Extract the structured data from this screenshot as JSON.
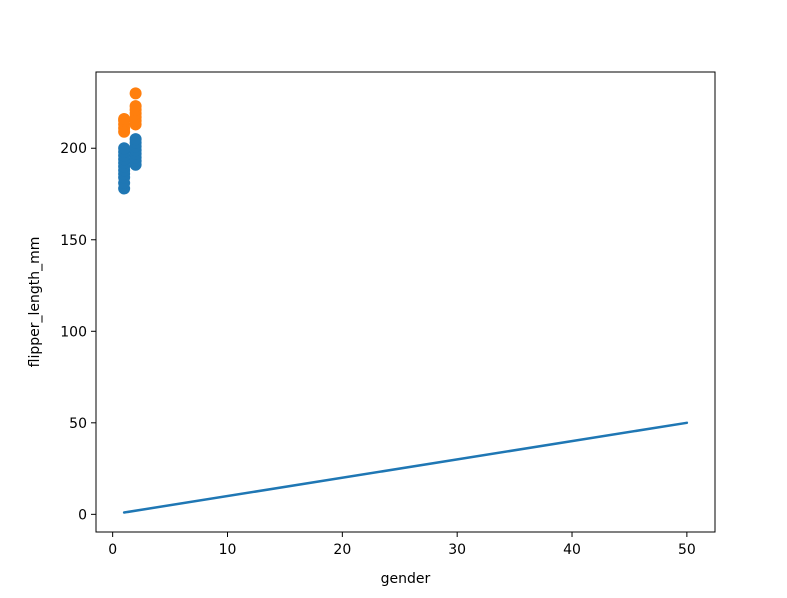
{
  "chart_data": {
    "type": "scatter",
    "title": "",
    "xlabel": "gender",
    "ylabel": "flipper_length_mm",
    "xlim": [
      -1.45,
      52.45
    ],
    "ylim": [
      -9.65,
      241.65
    ],
    "xticks": [
      0,
      10,
      20,
      30,
      40,
      50
    ],
    "yticks": [
      0,
      50,
      100,
      150,
      200
    ],
    "grid": false,
    "legend": "none",
    "series": [
      {
        "kind": "scatter",
        "color": "#1f77b4",
        "points": [
          [
            1,
            178
          ],
          [
            1,
            181
          ],
          [
            1,
            184
          ],
          [
            1,
            186
          ],
          [
            1,
            188
          ],
          [
            1,
            190
          ],
          [
            1,
            192
          ],
          [
            1,
            194
          ],
          [
            1,
            196
          ],
          [
            1,
            198
          ],
          [
            1,
            200
          ],
          [
            2,
            191
          ],
          [
            2,
            193
          ],
          [
            2,
            195
          ],
          [
            2,
            197
          ],
          [
            2,
            199
          ],
          [
            2,
            201
          ],
          [
            2,
            203
          ],
          [
            2,
            205
          ]
        ]
      },
      {
        "kind": "scatter",
        "color": "#ff7f0e",
        "points": [
          [
            1,
            209
          ],
          [
            1,
            211
          ],
          [
            1,
            213
          ],
          [
            1,
            215
          ],
          [
            1,
            216
          ],
          [
            2,
            213
          ],
          [
            2,
            215
          ],
          [
            2,
            217
          ],
          [
            2,
            219
          ],
          [
            2,
            221
          ],
          [
            2,
            223
          ],
          [
            2,
            230
          ]
        ]
      },
      {
        "kind": "line",
        "color": "#1f77b4",
        "x": [
          1,
          50
        ],
        "y": [
          1,
          50
        ]
      }
    ]
  }
}
